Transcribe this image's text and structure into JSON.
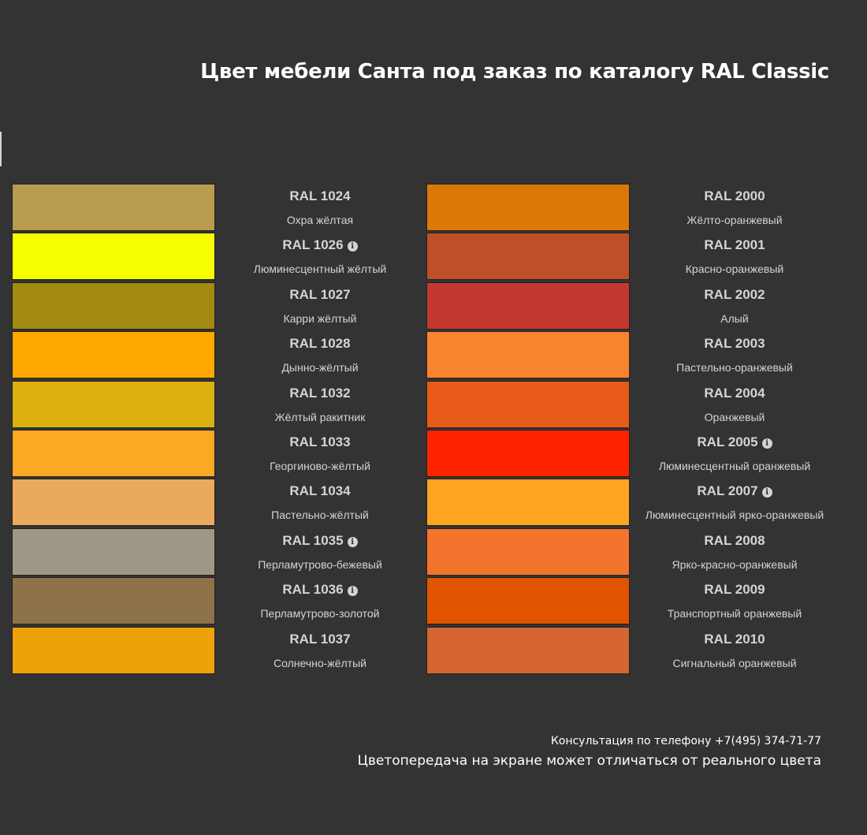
{
  "title": "Цвет мебели Санта под заказ по каталогу RAL Classic",
  "left_colors": [
    {
      "code": "RAL 1024",
      "name": "Охра жёлтая",
      "color": "#B89C50",
      "info": false
    },
    {
      "code": "RAL 1026",
      "name": "Люминесцентный жёлтый",
      "color": "#F5FF00",
      "info": true
    },
    {
      "code": "RAL 1027",
      "name": "Карри жёлтый",
      "color": "#A38A12",
      "info": false
    },
    {
      "code": "RAL 1028",
      "name": "Дынно-жёлтый",
      "color": "#FFA900",
      "info": false
    },
    {
      "code": "RAL 1032",
      "name": "Жёлтый ракитник",
      "color": "#DCAF11",
      "info": false
    },
    {
      "code": "RAL 1033",
      "name": "Георгиново-жёлтый",
      "color": "#FAA923",
      "info": false
    },
    {
      "code": "RAL 1034",
      "name": "Пастельно-жёлтый",
      "color": "#EAA95C",
      "info": false
    },
    {
      "code": "RAL 1035",
      "name": "Перламутрово-бежевый",
      "color": "#9E9785",
      "info": true
    },
    {
      "code": "RAL 1036",
      "name": "Перламутрово-золотой",
      "color": "#8E7249",
      "info": true
    },
    {
      "code": "RAL 1037",
      "name": "Солнечно-жёлтый",
      "color": "#EEA20A",
      "info": false
    }
  ],
  "right_colors": [
    {
      "code": "RAL 2000",
      "name": "Жёлто-оранжевый",
      "color": "#DC7808",
      "info": false
    },
    {
      "code": "RAL 2001",
      "name": "Красно-оранжевый",
      "color": "#BF4F28",
      "info": false
    },
    {
      "code": "RAL 2002",
      "name": "Алый",
      "color": "#C2382F",
      "info": false
    },
    {
      "code": "RAL 2003",
      "name": "Пастельно-оранжевый",
      "color": "#FA842E",
      "info": false
    },
    {
      "code": "RAL 2004",
      "name": "Оранжевый",
      "color": "#E75A17",
      "info": false
    },
    {
      "code": "RAL 2005",
      "name": "Люминесцентный оранжевый",
      "color": "#FF2300",
      "info": true
    },
    {
      "code": "RAL 2007",
      "name": "Люминесцентный ярко-оранжевый",
      "color": "#FFA421",
      "info": true
    },
    {
      "code": "RAL 2008",
      "name": "Ярко-красно-оранжевый",
      "color": "#F3752D",
      "info": false
    },
    {
      "code": "RAL 2009",
      "name": "Транспортный оранжевый",
      "color": "#E15400",
      "info": false
    },
    {
      "code": "RAL 2010",
      "name": "Сигнальный оранжевый",
      "color": "#D56631",
      "info": false
    }
  ],
  "footer": {
    "phone": "Консультация по телефону +7(495) 374-71-77",
    "note": "Цветопередача на экране может отличаться от реального цвета"
  }
}
